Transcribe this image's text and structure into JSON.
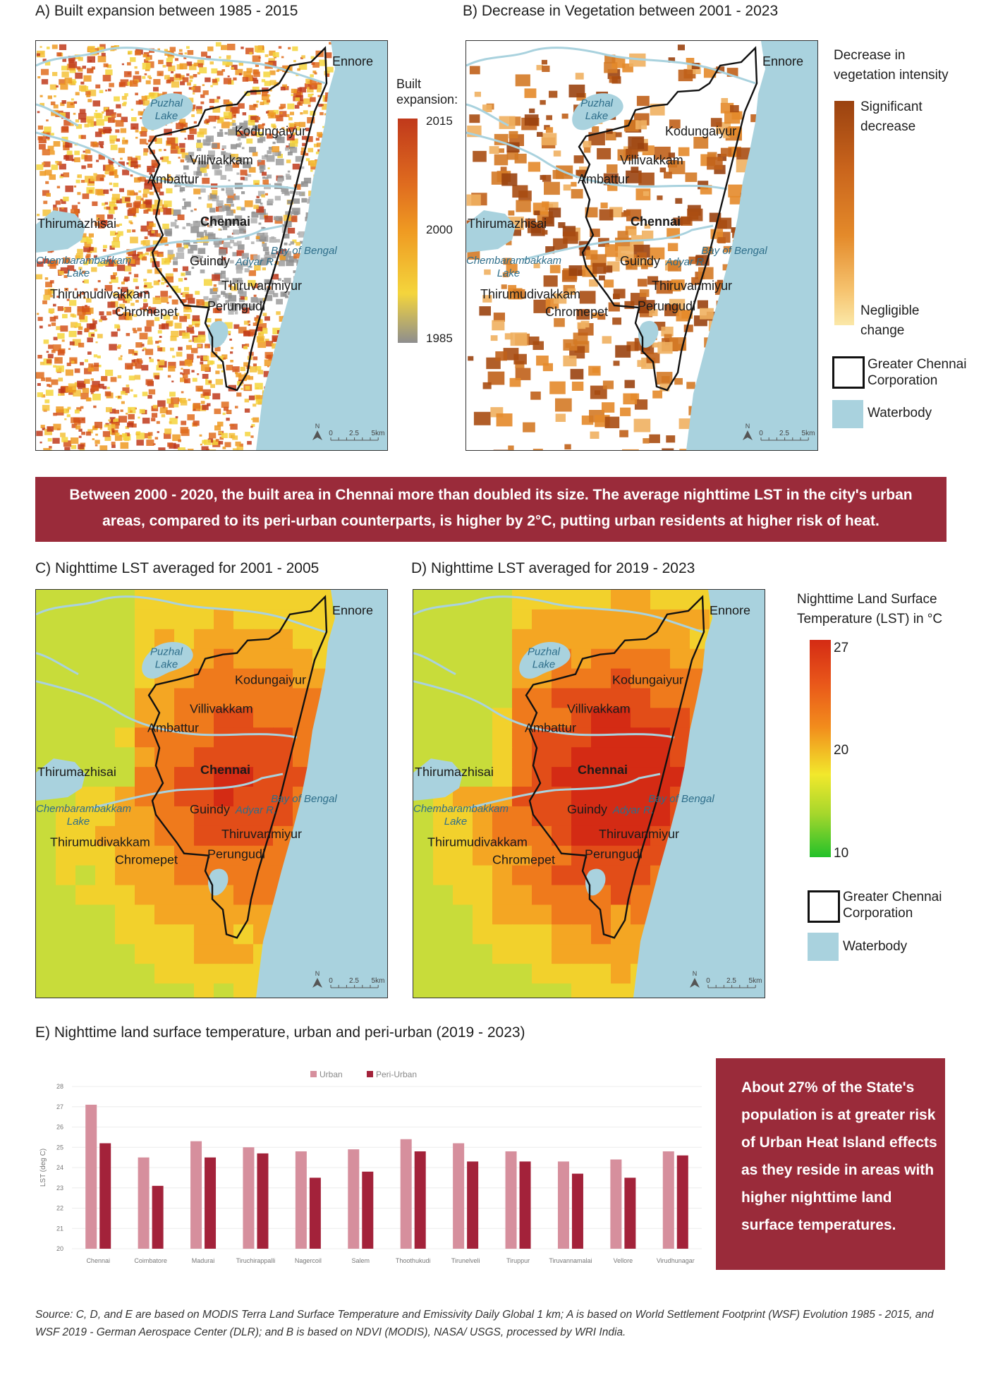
{
  "panels": {
    "a_title": "A) Built expansion between 1985 - 2015",
    "b_title": "B) Decrease in Vegetation between 2001 - 2023",
    "c_title": "C) Nighttime LST averaged for 2001 - 2005",
    "d_title": "D) Nighttime LST averaged for 2019 - 2023",
    "e_title": "E) Nighttime land surface temperature, urban and peri-urban (2019 - 2023)"
  },
  "map_labels": {
    "ennore": "Ennore",
    "puzhal": "Puzhal",
    "lake": "Lake",
    "kodungaiyur": "Kodungaiyur",
    "villivakkam": "Villivakkam",
    "ambattur": "Ambattur",
    "chennai": "Chennai",
    "thirumazhisai": "Thirumazhisai",
    "bay": "Bay of Bengal",
    "chembarambakkam": "Chembarambakkam",
    "guindy": "Guindy",
    "adyar": "Adyar R.",
    "thiruvanmiyur": "Thiruvanmiyur",
    "thirumudivakkam": "Thirumudivakkam",
    "chromepet": "Chromepet",
    "perungudi": "Perungudi",
    "north": "N",
    "scale_0": "0",
    "scale_25": "2.5",
    "scale_5": "5km"
  },
  "legend_a": {
    "title": "Built expansion:",
    "top": "2015",
    "mid": "2000",
    "bottom": "1985",
    "colors": [
      "#c0391b",
      "#e9851e",
      "#f4d53c",
      "#8e8e8e"
    ]
  },
  "legend_b": {
    "title": "Decrease in vegetation intensity",
    "high": "Significant decrease",
    "low": "Negligible change",
    "colors": [
      "#9a4210",
      "#e48a2a",
      "#fbe39c"
    ]
  },
  "legend_lst": {
    "title": "Nighttime Land Surface Temperature (LST) in °C",
    "v27": "27",
    "v20": "20",
    "v10": "10",
    "colors": [
      "#d42b14",
      "#f28c1c",
      "#f2e82c",
      "#23c12a"
    ]
  },
  "common_legend": {
    "boundary": "Greater Chennai Corporation",
    "water": "Waterbody"
  },
  "banner": "Between 2000 - 2020, the built area in Chennai more than doubled its size. The average nighttime LST in the city's urban areas, compared to its peri-urban counterparts, is higher by 2°C, putting urban residents at higher risk of heat.",
  "callout": "About 27% of the State's population is at greater risk of Urban Heat Island effects as they reside in areas with higher nighttime land surface temperatures.",
  "source": "Source: C, D, and E are based on MODIS Terra Land Surface Temperature and Emissivity Daily Global 1 km; A is based on World Settlement Footprint (WSF) Evolution 1985 - 2015, and WSF 2019 - German Aerospace Center (DLR); and B is based on NDVI (MODIS), NASA/ USGS, processed by WRI India.",
  "chart_data": {
    "type": "bar",
    "title": "",
    "ylabel": "LST (deg C)",
    "ylim": [
      20,
      28
    ],
    "yticks": [
      20,
      21,
      22,
      23,
      24,
      25,
      26,
      27,
      28
    ],
    "grid": true,
    "legend_position": "top-center",
    "categories": [
      "Chennai",
      "Coimbatore",
      "Madurai",
      "Tiruchirappalli",
      "Nagercoil",
      "Salem",
      "Thoothukudi",
      "Tirunelveli",
      "Tiruppur",
      "Tiruvannamalai",
      "Vellore",
      "Virudhunagar"
    ],
    "series": [
      {
        "name": "Urban",
        "color": "#d68f9d",
        "values": [
          27.1,
          24.5,
          25.3,
          25.0,
          24.8,
          24.9,
          25.4,
          25.2,
          24.8,
          24.3,
          24.4,
          24.8
        ]
      },
      {
        "name": "Peri-Urban",
        "color": "#a3223a",
        "values": [
          25.2,
          23.1,
          24.5,
          24.7,
          23.5,
          23.8,
          24.8,
          24.3,
          24.3,
          23.7,
          23.5,
          24.6
        ]
      }
    ]
  },
  "colors": {
    "banner_bg": "#9a2b3a",
    "water": "#a9d2de"
  }
}
